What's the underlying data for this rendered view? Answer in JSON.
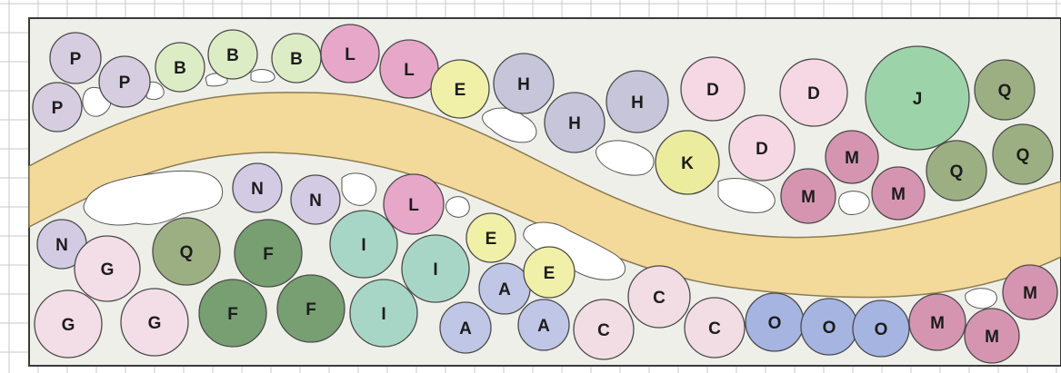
{
  "colors": {
    "background": "#ffffff",
    "grid": "#c9c9c9",
    "bed_fill": "#efefea",
    "bed_border": "#3a3a3a",
    "path_fill": "#f3d99a",
    "rock_fill": "#ffffff",
    "plant_outline": "#4a4a4a",
    "label_text": "#1c1c1c"
  },
  "legend_palette": {
    "P": "#d6cde0",
    "B": "#dcedc6",
    "L": "#e7a7c9",
    "E": "#f0f0a8",
    "H": "#c7c5da",
    "D": "#f5d8e3",
    "J": "#9dd3a9",
    "Q": "#9caf83",
    "K": "#ecec9f",
    "M": "#d595b0",
    "N": "#d3cae3",
    "G": "#f3dde6",
    "F": "#779f72",
    "I": "#a8d6c6",
    "A": "#c0c6e6",
    "C": "#f1dde3",
    "O": "#a5b4e0"
  },
  "plants": [
    {
      "label": "P"
    },
    {
      "label": "P"
    },
    {
      "label": "P"
    },
    {
      "label": "B"
    },
    {
      "label": "B"
    },
    {
      "label": "B"
    },
    {
      "label": "L"
    },
    {
      "label": "L"
    },
    {
      "label": "E"
    },
    {
      "label": "H"
    },
    {
      "label": "H"
    },
    {
      "label": "H"
    },
    {
      "label": "D"
    },
    {
      "label": "D"
    },
    {
      "label": "D"
    },
    {
      "label": "J"
    },
    {
      "label": "Q"
    },
    {
      "label": "Q"
    },
    {
      "label": "Q"
    },
    {
      "label": "K"
    },
    {
      "label": "M"
    },
    {
      "label": "M"
    },
    {
      "label": "M"
    },
    {
      "label": "N"
    },
    {
      "label": "N"
    },
    {
      "label": "N"
    },
    {
      "label": "L"
    },
    {
      "label": "G"
    },
    {
      "label": "Q"
    },
    {
      "label": "F"
    },
    {
      "label": "I"
    },
    {
      "label": "I"
    },
    {
      "label": "E"
    },
    {
      "label": "A"
    },
    {
      "label": "E"
    },
    {
      "label": "C"
    },
    {
      "label": "G"
    },
    {
      "label": "G"
    },
    {
      "label": "F"
    },
    {
      "label": "F"
    },
    {
      "label": "I"
    },
    {
      "label": "A"
    },
    {
      "label": "A"
    },
    {
      "label": "C"
    },
    {
      "label": "C"
    },
    {
      "label": "O"
    },
    {
      "label": "O"
    },
    {
      "label": "O"
    },
    {
      "label": "M"
    },
    {
      "label": "M"
    },
    {
      "label": "M"
    }
  ]
}
